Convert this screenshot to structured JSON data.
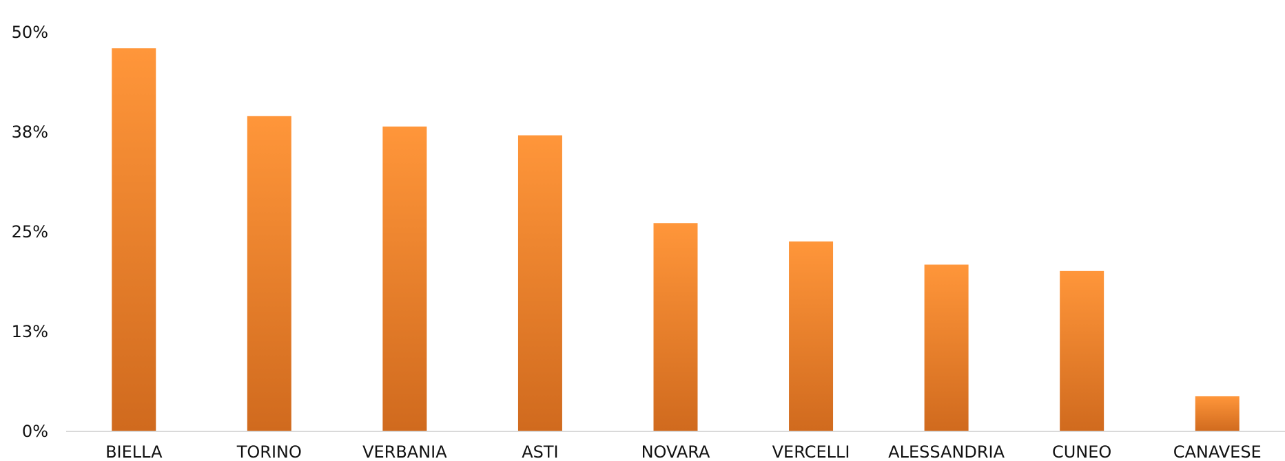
{
  "chart_data": {
    "type": "bar",
    "title": "",
    "xlabel": "",
    "ylabel": "",
    "categories": [
      "BIELLA",
      "TORINO",
      "VERBANIA",
      "ASTI",
      "NOVARA",
      "VERCELLI",
      "ALESSANDRIA",
      "CUNEO",
      "CANAVESE"
    ],
    "values": [
      48,
      39.5,
      38.2,
      37.1,
      26.1,
      23.8,
      20.9,
      20.1,
      4.4
    ],
    "ylim": [
      0,
      50
    ],
    "yticks": [
      0,
      12.5,
      25,
      37.5,
      50
    ],
    "ytick_labels": [
      "0%",
      "13%",
      "25%",
      "38%",
      "50%"
    ],
    "grid": false,
    "legend": "none",
    "colors": {
      "bar_top": "#ff963a",
      "bar_bottom": "#d06a1e",
      "axis": "#d9d9d9",
      "text": "#111111"
    }
  }
}
